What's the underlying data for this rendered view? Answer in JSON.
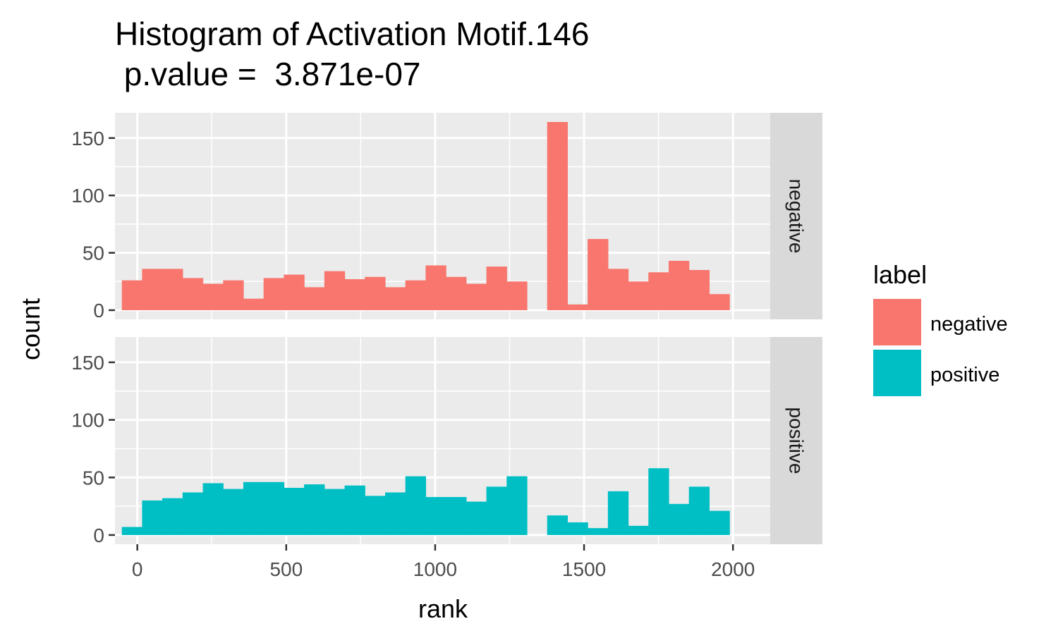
{
  "chart_data": {
    "type": "bar",
    "title_line1": "Histogram of Activation Motif.146",
    "title_line2": " p.value =  3.871e-07",
    "xlabel": "rank",
    "ylabel": "count",
    "xlim": [
      -75,
      2125
    ],
    "ylim": [
      -8,
      172
    ],
    "x_ticks": [
      0,
      500,
      1000,
      1500,
      2000
    ],
    "x_tick_labels": [
      "0",
      "500",
      "1000",
      "1500",
      "2000"
    ],
    "y_ticks": [
      0,
      50,
      100,
      150
    ],
    "y_tick_labels": [
      "0",
      "50",
      "100",
      "150"
    ],
    "bin_width": 68,
    "grid": true,
    "facet": "rows",
    "legend": {
      "title": "label",
      "position": "right",
      "items": [
        {
          "name": "negative",
          "color": "#F8766D"
        },
        {
          "name": "positive",
          "color": "#00BFC4"
        }
      ]
    },
    "bin_centers": [
      -18,
      50,
      118,
      186,
      254,
      322,
      390,
      458,
      526,
      594,
      662,
      730,
      798,
      866,
      934,
      1002,
      1070,
      1138,
      1206,
      1274,
      1342,
      1410,
      1478,
      1546,
      1614,
      1682,
      1750,
      1818,
      1886,
      1954
    ],
    "series": [
      {
        "name": "negative",
        "color": "#F8766D",
        "values": [
          26,
          36,
          36,
          28,
          23,
          26,
          10,
          28,
          31,
          20,
          34,
          27,
          29,
          20,
          26,
          39,
          29,
          23,
          38,
          25,
          0,
          164,
          5,
          62,
          36,
          25,
          33,
          43,
          35,
          14
        ]
      },
      {
        "name": "positive",
        "color": "#00BFC4",
        "values": [
          7,
          30,
          32,
          37,
          45,
          40,
          46,
          46,
          41,
          44,
          40,
          43,
          34,
          37,
          51,
          33,
          33,
          29,
          42,
          51,
          0,
          17,
          11,
          6,
          38,
          8,
          58,
          27,
          42,
          21
        ]
      }
    ]
  }
}
